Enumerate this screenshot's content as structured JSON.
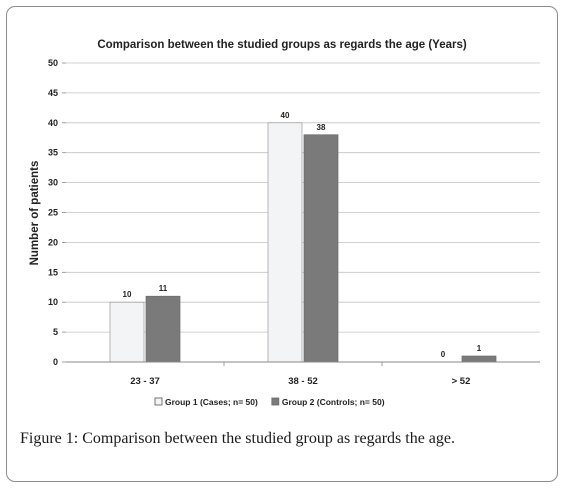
{
  "chart_data": {
    "type": "bar",
    "title": "Comparison between the studied groups as regards the age (Years)",
    "xlabel": "",
    "ylabel": "Number of patients",
    "ylim": [
      0,
      50
    ],
    "yticks": [
      0,
      5,
      10,
      15,
      20,
      25,
      30,
      35,
      40,
      45,
      50
    ],
    "grid": true,
    "legend_position": "bottom",
    "categories": [
      "23 - 37",
      "38 - 52",
      "> 52"
    ],
    "series": [
      {
        "name": "Group 1 (Cases; n= 50)",
        "values": [
          10,
          40,
          0
        ],
        "color": "#f3f4f6"
      },
      {
        "name": "Group 2 (Controls; n= 50)",
        "values": [
          11,
          38,
          1
        ],
        "color": "#7a7a7a"
      }
    ]
  },
  "caption": {
    "label": "Figure 1:",
    "text": " Comparison between the studied group as regards the age."
  }
}
